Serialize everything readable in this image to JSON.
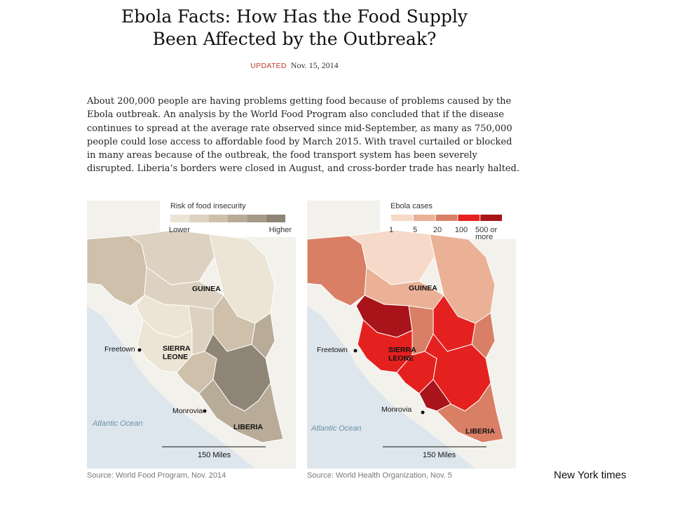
{
  "headline": {
    "line1": "Ebola Facts: How Has the Food Supply",
    "line2": "Been Affected by the Outbreak?"
  },
  "updated": {
    "label": "UPDATED",
    "date": "Nov. 15, 2014"
  },
  "body": "About 200,000 people are having problems getting food because of problems caused by the Ebola outbreak. An analysis by the World Food Program also concluded that if the disease continues to spread at the average rate observed since mid-September, as many as 750,000 people could lose access to affordable food by March 2015. With travel curtailed or blocked in many areas because of the outbreak, the food transport system has been severely disrupted. Liberia’s borders were closed in August, and cross-border trade has nearly halted.",
  "maps": [
    {
      "legend": {
        "title": "Risk of food insecurity",
        "low_label": "Lower",
        "high_label": "Higher",
        "colors": [
          "#ece4d5",
          "#ddd2c1",
          "#cec0aa",
          "#b8ab98",
          "#a59a88",
          "#8f8576"
        ]
      },
      "labels": {
        "guinea": "GUINEA",
        "sierra_leone_1": "SIERRA",
        "sierra_leone_2": "LEONE",
        "liberia": "LIBERIA",
        "freetown": "Freetown",
        "monrovia": "Monrovia",
        "ocean": "Atlantic Ocean",
        "scale": "150 Miles"
      },
      "source": "Source: World Food Program, Nov. 2014"
    },
    {
      "legend": {
        "title": "Ebola cases",
        "ticks": [
          "1",
          "5",
          "20",
          "100",
          "500 or",
          "more"
        ],
        "colors": [
          "#f6d9c9",
          "#eab196",
          "#d97f66",
          "#e5211f",
          "#a8141a"
        ]
      },
      "labels": {
        "guinea": "GUINEA",
        "sierra_leone_1": "SIERRA",
        "sierra_leone_2": "LEONE",
        "liberia": "LIBERIA",
        "freetown": "Freetown",
        "monrovia": "Monrovia",
        "ocean": "Atlantic Ocean",
        "scale": "150 Miles"
      },
      "source": "Source: World Health Organization, Nov. 5"
    }
  ],
  "credit": "New York times",
  "colors": {
    "ocean": "#dde6ec",
    "land_outside": "#f3f1ec",
    "border": "#ffffff",
    "updated_accent": "#c0392b"
  }
}
